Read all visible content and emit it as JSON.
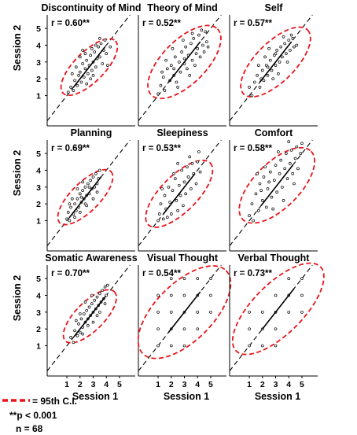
{
  "chart_data": [
    {
      "type": "scatter",
      "title": "Discontinuity of Mind",
      "r_label": "r = 0.60**",
      "ellipse": {
        "cx": 2.7,
        "cy": 2.7,
        "angle_deg": 45,
        "major_half": 2.45,
        "minor_half": 1.0,
        "color": "#e8141a"
      },
      "identity_line": true,
      "xlabel": "",
      "ylabel": "Session 2",
      "xlim": [
        -0.5,
        6.2
      ],
      "ylim": [
        -0.8,
        5.8
      ],
      "xticks": [],
      "yticks": [
        1,
        2,
        3,
        4,
        5
      ],
      "points": [
        [
          1.1,
          1.2
        ],
        [
          1.3,
          1.5
        ],
        [
          1.5,
          1.3
        ],
        [
          1.6,
          1.9
        ],
        [
          1.8,
          1.6
        ],
        [
          1.9,
          2.2
        ],
        [
          2.0,
          2.4
        ],
        [
          2.1,
          1.8
        ],
        [
          2.2,
          2.9
        ],
        [
          2.3,
          2.1
        ],
        [
          2.4,
          2.6
        ],
        [
          2.5,
          3.1
        ],
        [
          2.6,
          2.3
        ],
        [
          2.7,
          2.8
        ],
        [
          2.8,
          3.4
        ],
        [
          2.9,
          2.5
        ],
        [
          3.0,
          3.0
        ],
        [
          3.1,
          3.6
        ],
        [
          3.2,
          2.7
        ],
        [
          3.3,
          3.2
        ],
        [
          3.4,
          3.9
        ],
        [
          3.5,
          3.3
        ],
        [
          3.6,
          4.1
        ],
        [
          3.7,
          2.9
        ],
        [
          3.8,
          3.7
        ],
        [
          3.9,
          4.3
        ],
        [
          4.0,
          3.5
        ],
        [
          4.1,
          2.8
        ],
        [
          2.0,
          3.3
        ],
        [
          2.5,
          1.7
        ],
        [
          1.7,
          2.7
        ],
        [
          3.0,
          2.2
        ],
        [
          2.2,
          3.7
        ],
        [
          3.5,
          4.4
        ],
        [
          4.3,
          3.9
        ],
        [
          2.8,
          2.0
        ],
        [
          1.4,
          2.3
        ],
        [
          3.2,
          4.0
        ],
        [
          2.4,
          3.5
        ],
        [
          2.9,
          3.8
        ]
      ]
    },
    {
      "type": "scatter",
      "title": "Theory of Mind",
      "r_label": "r = 0.52**",
      "ellipse": {
        "cx": 3.0,
        "cy": 3.0,
        "angle_deg": 45,
        "major_half": 3.1,
        "minor_half": 1.45,
        "color": "#e8141a"
      },
      "identity_line": true,
      "xlabel": "",
      "ylabel": "",
      "xlim": [
        -0.5,
        6.2
      ],
      "ylim": [
        -0.8,
        5.8
      ],
      "xticks": [],
      "yticks": [],
      "points": [
        [
          1.0,
          1.1
        ],
        [
          1.2,
          1.6
        ],
        [
          1.4,
          2.1
        ],
        [
          1.5,
          1.3
        ],
        [
          1.7,
          2.6
        ],
        [
          1.9,
          1.9
        ],
        [
          2.0,
          2.8
        ],
        [
          2.2,
          2.2
        ],
        [
          2.3,
          3.3
        ],
        [
          2.4,
          1.8
        ],
        [
          2.6,
          3.0
        ],
        [
          2.7,
          2.4
        ],
        [
          2.8,
          3.6
        ],
        [
          3.0,
          2.9
        ],
        [
          3.1,
          3.9
        ],
        [
          3.2,
          2.6
        ],
        [
          3.3,
          3.4
        ],
        [
          3.5,
          4.1
        ],
        [
          3.6,
          3.1
        ],
        [
          3.7,
          4.4
        ],
        [
          3.8,
          2.8
        ],
        [
          4.0,
          3.8
        ],
        [
          4.1,
          4.6
        ],
        [
          4.2,
          3.3
        ],
        [
          4.4,
          4.0
        ],
        [
          4.5,
          3.6
        ],
        [
          4.6,
          4.8
        ],
        [
          4.7,
          4.2
        ],
        [
          1.6,
          3.1
        ],
        [
          2.5,
          1.5
        ],
        [
          3.4,
          2.2
        ],
        [
          2.1,
          3.8
        ],
        [
          3.9,
          3.5
        ],
        [
          4.3,
          4.9
        ],
        [
          2.9,
          4.3
        ],
        [
          1.3,
          2.4
        ],
        [
          3.6,
          4.7
        ],
        [
          4.8,
          3.9
        ],
        [
          2.2,
          2.6
        ],
        [
          3.0,
          3.2
        ]
      ]
    },
    {
      "type": "scatter",
      "title": "Self",
      "r_label": "r = 0.57**",
      "ellipse": {
        "cx": 3.0,
        "cy": 3.0,
        "angle_deg": 45,
        "major_half": 3.0,
        "minor_half": 1.3,
        "color": "#e8141a"
      },
      "identity_line": true,
      "xlabel": "",
      "ylabel": "",
      "xlim": [
        -0.5,
        6.2
      ],
      "ylim": [
        -0.8,
        5.8
      ],
      "xticks": [],
      "yticks": [],
      "points": [
        [
          1.0,
          1.5
        ],
        [
          1.2,
          1.0
        ],
        [
          1.4,
          1.8
        ],
        [
          1.6,
          2.2
        ],
        [
          1.8,
          1.5
        ],
        [
          2.0,
          2.5
        ],
        [
          2.1,
          1.9
        ],
        [
          2.3,
          2.8
        ],
        [
          2.4,
          2.2
        ],
        [
          2.6,
          3.1
        ],
        [
          2.7,
          2.5
        ],
        [
          2.9,
          3.4
        ],
        [
          3.0,
          2.8
        ],
        [
          3.1,
          3.7
        ],
        [
          3.3,
          3.0
        ],
        [
          3.4,
          3.9
        ],
        [
          3.5,
          3.3
        ],
        [
          3.7,
          4.1
        ],
        [
          3.8,
          3.5
        ],
        [
          4.0,
          4.3
        ],
        [
          4.1,
          3.7
        ],
        [
          4.3,
          4.4
        ],
        [
          4.4,
          3.9
        ],
        [
          4.6,
          4.0
        ],
        [
          2.2,
          3.3
        ],
        [
          3.2,
          2.3
        ],
        [
          1.7,
          2.8
        ],
        [
          3.9,
          3.0
        ],
        [
          2.5,
          3.8
        ],
        [
          4.2,
          4.6
        ],
        [
          2.8,
          2.0
        ],
        [
          3.6,
          4.5
        ],
        [
          1.9,
          2.0
        ],
        [
          3.0,
          3.5
        ],
        [
          2.4,
          2.7
        ]
      ]
    },
    {
      "type": "scatter",
      "title": "Planning",
      "r_label": "r = 0.69**",
      "ellipse": {
        "cx": 2.4,
        "cy": 2.4,
        "angle_deg": 45,
        "major_half": 2.4,
        "minor_half": 0.95,
        "color": "#e8141a"
      },
      "identity_line": true,
      "xlabel": "",
      "ylabel": "Session 2",
      "xlim": [
        -0.5,
        6.2
      ],
      "ylim": [
        -0.8,
        5.8
      ],
      "xticks": [],
      "yticks": [
        1,
        2,
        3,
        4,
        5
      ],
      "points": [
        [
          1.0,
          1.1
        ],
        [
          1.1,
          1.5
        ],
        [
          1.2,
          1.0
        ],
        [
          1.3,
          1.8
        ],
        [
          1.5,
          1.4
        ],
        [
          1.6,
          2.0
        ],
        [
          1.7,
          1.6
        ],
        [
          1.8,
          2.3
        ],
        [
          1.9,
          1.8
        ],
        [
          2.0,
          2.6
        ],
        [
          2.1,
          2.1
        ],
        [
          2.2,
          2.8
        ],
        [
          2.3,
          2.3
        ],
        [
          2.4,
          3.0
        ],
        [
          2.5,
          2.5
        ],
        [
          2.6,
          3.2
        ],
        [
          2.7,
          2.6
        ],
        [
          2.8,
          3.4
        ],
        [
          2.9,
          2.9
        ],
        [
          3.0,
          3.6
        ],
        [
          3.1,
          3.0
        ],
        [
          3.2,
          3.8
        ],
        [
          3.3,
          3.2
        ],
        [
          3.4,
          3.5
        ],
        [
          1.4,
          2.3
        ],
        [
          2.0,
          1.5
        ],
        [
          2.5,
          1.9
        ],
        [
          1.8,
          2.9
        ],
        [
          3.0,
          2.3
        ],
        [
          2.2,
          3.3
        ],
        [
          3.5,
          4.0
        ],
        [
          1.2,
          2.0
        ],
        [
          2.7,
          3.0
        ],
        [
          2.4,
          2.0
        ],
        [
          1.6,
          1.2
        ],
        [
          3.3,
          2.7
        ],
        [
          2.1,
          2.4
        ]
      ]
    },
    {
      "type": "scatter",
      "title": "Sleepiness",
      "r_label": "r = 0.53**",
      "ellipse": {
        "cx": 2.6,
        "cy": 2.6,
        "angle_deg": 45,
        "major_half": 2.9,
        "minor_half": 1.2,
        "color": "#e8141a"
      },
      "identity_line": true,
      "xlabel": "",
      "ylabel": "",
      "xlim": [
        -0.5,
        6.2
      ],
      "ylim": [
        -0.8,
        5.8
      ],
      "xticks": [],
      "yticks": [],
      "points": [
        [
          1.0,
          1.0
        ],
        [
          1.1,
          1.4
        ],
        [
          1.2,
          2.0
        ],
        [
          1.4,
          1.1
        ],
        [
          1.5,
          2.5
        ],
        [
          1.6,
          1.7
        ],
        [
          1.8,
          3.0
        ],
        [
          1.9,
          2.1
        ],
        [
          2.0,
          1.4
        ],
        [
          2.1,
          2.8
        ],
        [
          2.3,
          3.5
        ],
        [
          2.4,
          2.2
        ],
        [
          2.5,
          1.6
        ],
        [
          2.6,
          3.1
        ],
        [
          2.7,
          2.5
        ],
        [
          2.8,
          4.0
        ],
        [
          3.0,
          3.3
        ],
        [
          3.1,
          2.6
        ],
        [
          3.2,
          4.2
        ],
        [
          3.3,
          3.6
        ],
        [
          3.5,
          2.9
        ],
        [
          3.6,
          4.4
        ],
        [
          3.7,
          3.8
        ],
        [
          3.9,
          3.2
        ],
        [
          4.0,
          4.5
        ],
        [
          4.2,
          3.9
        ],
        [
          1.3,
          2.9
        ],
        [
          2.2,
          3.8
        ],
        [
          3.4,
          4.8
        ],
        [
          2.9,
          1.9
        ],
        [
          1.7,
          1.2
        ],
        [
          4.1,
          5.1
        ],
        [
          2.5,
          4.4
        ]
      ]
    },
    {
      "type": "scatter",
      "title": "Comfort",
      "r_label": "r = 0.58**",
      "ellipse": {
        "cx": 3.1,
        "cy": 3.1,
        "angle_deg": 45,
        "major_half": 3.2,
        "minor_half": 1.5,
        "color": "#e8141a"
      },
      "identity_line": true,
      "xlabel": "",
      "ylabel": "",
      "xlim": [
        -0.5,
        6.2
      ],
      "ylim": [
        -0.8,
        5.8
      ],
      "xticks": [],
      "yticks": [],
      "points": [
        [
          1.0,
          1.3
        ],
        [
          1.2,
          2.0
        ],
        [
          1.3,
          1.0
        ],
        [
          1.5,
          2.6
        ],
        [
          1.7,
          1.6
        ],
        [
          1.8,
          3.2
        ],
        [
          2.0,
          2.2
        ],
        [
          2.1,
          3.6
        ],
        [
          2.3,
          1.8
        ],
        [
          2.4,
          2.9
        ],
        [
          2.6,
          3.9
        ],
        [
          2.7,
          2.4
        ],
        [
          2.9,
          3.4
        ],
        [
          3.0,
          4.3
        ],
        [
          3.1,
          2.7
        ],
        [
          3.3,
          3.8
        ],
        [
          3.4,
          4.6
        ],
        [
          3.5,
          3.0
        ],
        [
          3.7,
          4.1
        ],
        [
          3.8,
          5.0
        ],
        [
          3.9,
          3.5
        ],
        [
          4.1,
          4.4
        ],
        [
          4.2,
          5.2
        ],
        [
          4.3,
          3.8
        ],
        [
          4.5,
          4.7
        ],
        [
          4.6,
          5.4
        ],
        [
          4.7,
          4.1
        ],
        [
          4.9,
          5.0
        ],
        [
          5.0,
          5.6
        ],
        [
          2.2,
          4.2
        ],
        [
          3.6,
          2.2
        ],
        [
          1.6,
          3.8
        ],
        [
          4.4,
          3.2
        ],
        [
          2.8,
          1.7
        ],
        [
          3.2,
          5.1
        ],
        [
          4.0,
          5.7
        ],
        [
          1.9,
          2.8
        ],
        [
          2.5,
          3.3
        ]
      ]
    },
    {
      "type": "scatter",
      "title": "Somatic Awareness",
      "r_label": "r = 0.70**",
      "ellipse": {
        "cx": 2.75,
        "cy": 2.75,
        "angle_deg": 45,
        "major_half": 2.3,
        "minor_half": 0.95,
        "color": "#e8141a"
      },
      "identity_line": true,
      "xlabel": "Session 1",
      "ylabel": "Session 2",
      "xlim": [
        -0.5,
        6.2
      ],
      "ylim": [
        -0.8,
        5.8
      ],
      "xticks": [
        1,
        2,
        3,
        4,
        5
      ],
      "yticks": [
        1,
        2,
        3,
        4,
        5
      ],
      "points": [
        [
          1.3,
          1.5
        ],
        [
          1.5,
          1.2
        ],
        [
          1.6,
          1.9
        ],
        [
          1.8,
          1.6
        ],
        [
          1.9,
          2.3
        ],
        [
          2.0,
          1.8
        ],
        [
          2.1,
          2.6
        ],
        [
          2.2,
          2.1
        ],
        [
          2.3,
          2.9
        ],
        [
          2.4,
          2.4
        ],
        [
          2.5,
          3.1
        ],
        [
          2.6,
          2.6
        ],
        [
          2.7,
          3.3
        ],
        [
          2.8,
          2.8
        ],
        [
          2.9,
          3.5
        ],
        [
          3.0,
          3.0
        ],
        [
          3.1,
          3.7
        ],
        [
          3.2,
          3.2
        ],
        [
          3.3,
          3.9
        ],
        [
          3.4,
          3.4
        ],
        [
          3.5,
          4.1
        ],
        [
          3.6,
          3.6
        ],
        [
          3.7,
          4.3
        ],
        [
          3.8,
          3.8
        ],
        [
          3.9,
          4.5
        ],
        [
          4.0,
          4.0
        ],
        [
          2.0,
          2.9
        ],
        [
          3.0,
          2.4
        ],
        [
          2.4,
          3.6
        ],
        [
          3.5,
          3.0
        ],
        [
          1.7,
          2.5
        ],
        [
          3.9,
          3.5
        ],
        [
          2.9,
          4.0
        ],
        [
          2.2,
          1.7
        ],
        [
          4.1,
          4.6
        ],
        [
          2.6,
          2.2
        ],
        [
          3.3,
          2.8
        ]
      ]
    },
    {
      "type": "scatter",
      "title": "Visual Thought",
      "r_label": "r = 0.54**",
      "ellipse": {
        "cx": 3.0,
        "cy": 3.0,
        "angle_deg": 45,
        "major_half": 3.9,
        "minor_half": 1.9,
        "color": "#e8141a"
      },
      "identity_line": true,
      "xlabel": "Session 1",
      "ylabel": "",
      "xlim": [
        -0.5,
        6.2
      ],
      "ylim": [
        -0.8,
        5.8
      ],
      "xticks": [
        1,
        2,
        3,
        4,
        5
      ],
      "yticks": [],
      "points": [
        [
          1,
          1
        ],
        [
          1,
          2
        ],
        [
          1,
          3
        ],
        [
          2,
          1
        ],
        [
          2,
          2
        ],
        [
          2,
          3
        ],
        [
          2,
          4
        ],
        [
          3,
          2
        ],
        [
          3,
          3
        ],
        [
          3,
          4
        ],
        [
          3,
          5
        ],
        [
          4,
          3
        ],
        [
          4,
          4
        ],
        [
          4,
          5
        ],
        [
          5,
          4
        ],
        [
          5,
          5
        ],
        [
          1,
          4
        ],
        [
          4,
          2
        ],
        [
          2,
          5
        ],
        [
          5,
          3
        ],
        [
          3,
          1
        ]
      ]
    },
    {
      "type": "scatter",
      "title": "Verbal Thought",
      "r_label": "r = 0.73**",
      "ellipse": {
        "cx": 3.2,
        "cy": 3.2,
        "angle_deg": 45,
        "major_half": 3.95,
        "minor_half": 1.65,
        "color": "#e8141a"
      },
      "identity_line": true,
      "xlabel": "Session 1",
      "ylabel": "",
      "xlim": [
        -0.5,
        6.2
      ],
      "ylim": [
        -0.8,
        5.8
      ],
      "xticks": [
        1,
        2,
        3,
        4,
        5
      ],
      "yticks": [],
      "points": [
        [
          1,
          1
        ],
        [
          1,
          2
        ],
        [
          2,
          1
        ],
        [
          2,
          2
        ],
        [
          2,
          3
        ],
        [
          3,
          2
        ],
        [
          3,
          3
        ],
        [
          3,
          4
        ],
        [
          4,
          3
        ],
        [
          4,
          4
        ],
        [
          4,
          5
        ],
        [
          5,
          4
        ],
        [
          5,
          5
        ],
        [
          3,
          1
        ],
        [
          1,
          3
        ],
        [
          5,
          3
        ]
      ]
    }
  ],
  "legend": {
    "ci_label": "= 95th C.I.",
    "p_label": "**p < 0.001",
    "n_label": "n = 68"
  },
  "colors": {
    "ellipse": "#e8141a",
    "points": "#000000",
    "axes": "#000000"
  }
}
